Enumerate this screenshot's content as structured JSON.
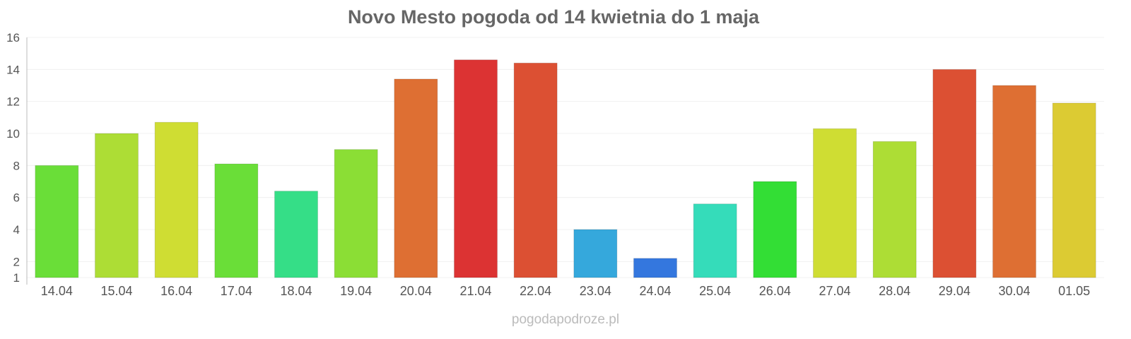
{
  "chart_data": {
    "type": "bar",
    "title": "Novo Mesto pogoda od 14 kwietnia do 1 maja",
    "xlabel": "",
    "ylabel": "",
    "ylim": [
      1,
      16
    ],
    "yticks": [
      1,
      2,
      4,
      6,
      8,
      10,
      12,
      14,
      16
    ],
    "grid": true,
    "categories": [
      "14.04",
      "15.04",
      "16.04",
      "17.04",
      "18.04",
      "19.04",
      "20.04",
      "21.04",
      "22.04",
      "23.04",
      "24.04",
      "25.04",
      "26.04",
      "27.04",
      "28.04",
      "29.04",
      "30.04",
      "01.05"
    ],
    "values": [
      8.0,
      10.0,
      10.7,
      8.1,
      6.4,
      9.0,
      13.4,
      14.6,
      14.4,
      4.0,
      2.2,
      5.6,
      7.0,
      10.3,
      9.5,
      14.0,
      13.0,
      11.9
    ],
    "colors": [
      "#6ade38",
      "#addd35",
      "#cfdd33",
      "#6ade38",
      "#35de87",
      "#8bde35",
      "#de6f33",
      "#dc3333",
      "#dc5033",
      "#35a8dc",
      "#3477de",
      "#35dcba",
      "#33de35",
      "#cfdd33",
      "#addd35",
      "#dc5033",
      "#de6f33",
      "#dccb33"
    ]
  },
  "credit": "pogodapodroze.pl"
}
